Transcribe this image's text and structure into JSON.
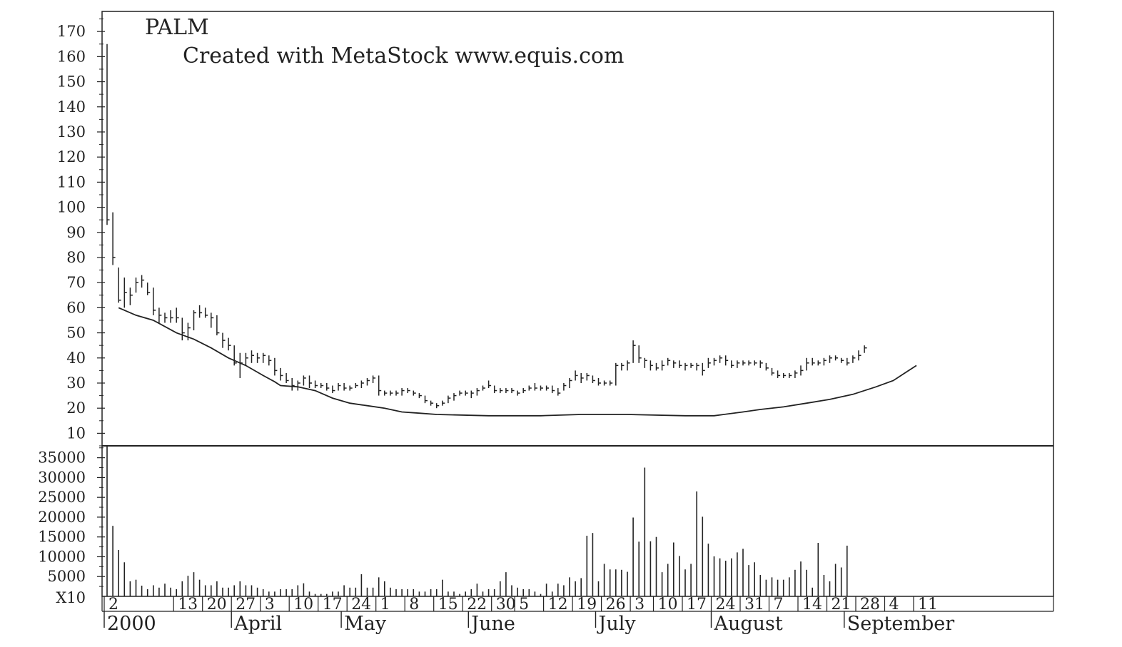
{
  "chart_data": {
    "type": "line",
    "title": "PALM",
    "subtitle": "Created with MetaStock www.equis.com",
    "volume_unit_label": "X10",
    "x_day_ticks": [
      {
        "i": 0,
        "label": "2"
      },
      {
        "i": 12,
        "label": "13"
      },
      {
        "i": 17,
        "label": "20"
      },
      {
        "i": 22,
        "label": "27"
      },
      {
        "i": 27,
        "label": "3"
      },
      {
        "i": 32,
        "label": "10"
      },
      {
        "i": 37,
        "label": "17"
      },
      {
        "i": 42,
        "label": "24"
      },
      {
        "i": 47,
        "label": "1"
      },
      {
        "i": 52,
        "label": "8"
      },
      {
        "i": 57,
        "label": "15"
      },
      {
        "i": 62,
        "label": "22"
      },
      {
        "i": 67,
        "label": "30"
      },
      {
        "i": 71,
        "label": "5"
      },
      {
        "i": 76,
        "label": "12"
      },
      {
        "i": 81,
        "label": "19"
      },
      {
        "i": 86,
        "label": "26"
      },
      {
        "i": 91,
        "label": "3"
      },
      {
        "i": 95,
        "label": "10"
      },
      {
        "i": 100,
        "label": "17"
      },
      {
        "i": 105,
        "label": "24"
      },
      {
        "i": 110,
        "label": "31"
      },
      {
        "i": 115,
        "label": "7"
      },
      {
        "i": 120,
        "label": "14"
      },
      {
        "i": 125,
        "label": "21"
      },
      {
        "i": 130,
        "label": "28"
      },
      {
        "i": 135,
        "label": "4"
      },
      {
        "i": 140,
        "label": "11"
      }
    ],
    "x_month_labels": [
      {
        "i": 0,
        "label": "2000"
      },
      {
        "i": 22,
        "label": "April"
      },
      {
        "i": 41,
        "label": "May"
      },
      {
        "i": 63,
        "label": "June"
      },
      {
        "i": 85,
        "label": "July"
      },
      {
        "i": 105,
        "label": "August"
      },
      {
        "i": 128,
        "label": "September"
      }
    ],
    "price_axis": {
      "min": 5,
      "max": 178,
      "ticks": [
        10,
        20,
        30,
        40,
        50,
        60,
        70,
        80,
        90,
        100,
        110,
        120,
        130,
        140,
        150,
        160,
        170
      ]
    },
    "volume_axis": {
      "min": 0,
      "max": 38000,
      "ticks": [
        5000,
        10000,
        15000,
        20000,
        25000,
        30000,
        35000
      ]
    },
    "price_bars": [
      [
        165,
        93,
        95
      ],
      [
        98,
        77,
        80
      ],
      [
        76,
        62,
        63
      ],
      [
        72,
        60,
        66
      ],
      [
        68,
        61,
        65
      ],
      [
        72,
        66,
        70
      ],
      [
        73,
        68,
        71
      ],
      [
        70,
        65,
        66
      ],
      [
        68,
        57,
        59
      ],
      [
        60,
        54,
        57
      ],
      [
        58,
        54,
        56
      ],
      [
        59,
        54,
        56
      ],
      [
        60,
        54,
        56
      ],
      [
        56,
        47,
        50
      ],
      [
        54,
        47,
        52
      ],
      [
        59,
        51,
        58
      ],
      [
        61,
        56,
        58
      ],
      [
        60,
        56,
        57
      ],
      [
        58,
        52,
        56
      ],
      [
        57,
        49,
        50
      ],
      [
        50,
        44,
        47
      ],
      [
        48,
        43,
        45
      ],
      [
        45,
        37,
        38
      ],
      [
        42,
        32,
        38
      ],
      [
        42,
        37,
        40
      ],
      [
        43,
        38,
        41
      ],
      [
        42,
        38,
        40
      ],
      [
        42,
        38,
        41
      ],
      [
        41,
        37,
        39
      ],
      [
        40,
        33,
        35
      ],
      [
        36,
        31,
        33
      ],
      [
        34,
        30,
        31
      ],
      [
        32,
        27,
        29
      ],
      [
        31,
        27,
        30
      ],
      [
        33,
        29,
        32
      ],
      [
        33,
        28,
        30
      ],
      [
        31,
        28,
        29
      ],
      [
        30,
        28,
        29
      ],
      [
        30,
        27,
        28
      ],
      [
        29,
        26,
        27
      ],
      [
        30,
        27,
        29
      ],
      [
        30,
        27,
        28
      ],
      [
        29,
        27,
        28
      ],
      [
        30,
        28,
        29
      ],
      [
        31,
        28,
        30
      ],
      [
        32,
        29,
        31
      ],
      [
        33,
        30,
        32
      ],
      [
        33,
        25,
        27
      ],
      [
        27,
        25,
        26
      ],
      [
        27,
        25,
        26
      ],
      [
        27,
        25,
        26
      ],
      [
        28,
        25,
        27
      ],
      [
        28,
        26,
        27
      ],
      [
        27,
        25,
        26
      ],
      [
        26,
        24,
        25
      ],
      [
        25,
        22,
        23
      ],
      [
        23,
        21,
        22
      ],
      [
        22,
        20,
        21
      ],
      [
        23,
        21,
        22
      ],
      [
        25,
        22,
        24
      ],
      [
        26,
        23,
        25
      ],
      [
        27,
        25,
        26
      ],
      [
        27,
        25,
        26
      ],
      [
        27,
        24,
        26
      ],
      [
        28,
        25,
        27
      ],
      [
        29,
        27,
        28
      ],
      [
        31,
        28,
        29
      ],
      [
        29,
        26,
        27
      ],
      [
        28,
        26,
        27
      ],
      [
        28,
        26,
        27
      ],
      [
        28,
        26,
        27
      ],
      [
        27,
        25,
        26
      ],
      [
        28,
        26,
        27
      ],
      [
        29,
        27,
        28
      ],
      [
        30,
        27,
        28
      ],
      [
        29,
        27,
        28
      ],
      [
        29,
        27,
        28
      ],
      [
        29,
        26,
        27
      ],
      [
        28,
        25,
        26
      ],
      [
        30,
        27,
        29
      ],
      [
        32,
        28,
        31
      ],
      [
        35,
        31,
        33
      ],
      [
        34,
        30,
        32
      ],
      [
        34,
        31,
        33
      ],
      [
        33,
        30,
        31
      ],
      [
        32,
        29,
        30
      ],
      [
        31,
        29,
        30
      ],
      [
        31,
        29,
        30
      ],
      [
        38,
        29,
        37
      ],
      [
        38,
        35,
        37
      ],
      [
        39,
        35,
        38
      ],
      [
        47,
        38,
        45
      ],
      [
        45,
        38,
        40
      ],
      [
        40,
        36,
        39
      ],
      [
        39,
        35,
        37
      ],
      [
        38,
        35,
        36
      ],
      [
        39,
        35,
        37
      ],
      [
        40,
        37,
        39
      ],
      [
        39,
        36,
        38
      ],
      [
        39,
        36,
        37
      ],
      [
        38,
        35,
        37
      ],
      [
        38,
        36,
        37
      ],
      [
        38,
        35,
        37
      ],
      [
        38,
        33,
        35
      ],
      [
        40,
        36,
        38
      ],
      [
        40,
        37,
        39
      ],
      [
        41,
        38,
        40
      ],
      [
        41,
        37,
        39
      ],
      [
        39,
        36,
        37
      ],
      [
        39,
        36,
        38
      ],
      [
        39,
        37,
        38
      ],
      [
        39,
        37,
        38
      ],
      [
        39,
        37,
        38
      ],
      [
        39,
        36,
        38
      ],
      [
        38,
        35,
        36
      ],
      [
        36,
        33,
        34
      ],
      [
        35,
        32,
        33
      ],
      [
        34,
        32,
        33
      ],
      [
        34,
        32,
        33
      ],
      [
        35,
        32,
        34
      ],
      [
        37,
        33,
        35
      ],
      [
        40,
        35,
        38
      ],
      [
        40,
        37,
        38
      ],
      [
        39,
        37,
        38
      ],
      [
        40,
        37,
        39
      ],
      [
        41,
        38,
        40
      ],
      [
        41,
        39,
        40
      ],
      [
        40,
        38,
        39
      ],
      [
        40,
        37,
        38
      ],
      [
        41,
        38,
        40
      ],
      [
        43,
        39,
        41
      ],
      [
        45,
        42,
        44
      ]
    ],
    "moving_average": [
      [
        2,
        60
      ],
      [
        5,
        57
      ],
      [
        8,
        55
      ],
      [
        12,
        50
      ],
      [
        15,
        47.5
      ],
      [
        18,
        44
      ],
      [
        21,
        40
      ],
      [
        24,
        37
      ],
      [
        27,
        33
      ],
      [
        29,
        30.5
      ],
      [
        30,
        29
      ],
      [
        33,
        28.5
      ],
      [
        36,
        27
      ],
      [
        39,
        24
      ],
      [
        42,
        22
      ],
      [
        45,
        21
      ],
      [
        48,
        20
      ],
      [
        51,
        18.5
      ],
      [
        54,
        18
      ],
      [
        57,
        17.5
      ],
      [
        66,
        17
      ],
      [
        75,
        17
      ],
      [
        82,
        17.5
      ],
      [
        90,
        17.5
      ],
      [
        100,
        17
      ],
      [
        105,
        17
      ],
      [
        110,
        18.5
      ],
      [
        113,
        19.5
      ],
      [
        117,
        20.5
      ],
      [
        121,
        22
      ],
      [
        125,
        23.5
      ],
      [
        129,
        25.5
      ],
      [
        133,
        28.5
      ],
      [
        136,
        31
      ],
      [
        138,
        34
      ],
      [
        140,
        37
      ]
    ],
    "volume": [
      [
        0,
        38000
      ],
      [
        1,
        17800
      ],
      [
        2,
        11700
      ],
      [
        3,
        8600
      ],
      [
        4,
        3800
      ],
      [
        5,
        4200
      ],
      [
        6,
        2700
      ],
      [
        7,
        1800
      ],
      [
        8,
        2800
      ],
      [
        9,
        2200
      ],
      [
        10,
        3200
      ],
      [
        11,
        2200
      ],
      [
        12,
        1800
      ],
      [
        13,
        3800
      ],
      [
        14,
        5200
      ],
      [
        15,
        6100
      ],
      [
        16,
        4200
      ],
      [
        17,
        2800
      ],
      [
        18,
        2800
      ],
      [
        19,
        3800
      ],
      [
        20,
        2200
      ],
      [
        21,
        2200
      ],
      [
        22,
        2800
      ],
      [
        23,
        3800
      ],
      [
        24,
        2800
      ],
      [
        25,
        2800
      ],
      [
        26,
        2200
      ],
      [
        27,
        1800
      ],
      [
        28,
        1200
      ],
      [
        29,
        1200
      ],
      [
        30,
        1800
      ],
      [
        31,
        1800
      ],
      [
        32,
        1800
      ],
      [
        33,
        2800
      ],
      [
        34,
        3300
      ],
      [
        35,
        1200
      ],
      [
        36,
        600
      ],
      [
        37,
        600
      ],
      [
        38,
        600
      ],
      [
        39,
        1200
      ],
      [
        40,
        1200
      ],
      [
        41,
        2800
      ],
      [
        42,
        2200
      ],
      [
        43,
        2200
      ],
      [
        44,
        5600
      ],
      [
        45,
        2200
      ],
      [
        46,
        2200
      ],
      [
        47,
        4800
      ],
      [
        48,
        3800
      ],
      [
        49,
        2200
      ],
      [
        50,
        1800
      ],
      [
        51,
        1800
      ],
      [
        52,
        1800
      ],
      [
        53,
        1800
      ],
      [
        54,
        1200
      ],
      [
        55,
        1200
      ],
      [
        56,
        1800
      ],
      [
        57,
        1800
      ],
      [
        58,
        4200
      ],
      [
        59,
        1200
      ],
      [
        60,
        1200
      ],
      [
        61,
        600
      ],
      [
        62,
        1200
      ],
      [
        63,
        1800
      ],
      [
        64,
        3200
      ],
      [
        65,
        1200
      ],
      [
        66,
        1800
      ],
      [
        67,
        1800
      ],
      [
        68,
        3800
      ],
      [
        69,
        6100
      ],
      [
        70,
        2800
      ],
      [
        71,
        2200
      ],
      [
        72,
        1800
      ],
      [
        73,
        1800
      ],
      [
        74,
        1200
      ],
      [
        75,
        600
      ],
      [
        76,
        3200
      ],
      [
        77,
        1200
      ],
      [
        78,
        3200
      ],
      [
        79,
        2800
      ],
      [
        80,
        4800
      ],
      [
        81,
        3800
      ],
      [
        82,
        4600
      ],
      [
        83,
        15300
      ],
      [
        84,
        16000
      ],
      [
        85,
        3800
      ],
      [
        86,
        8200
      ],
      [
        87,
        6800
      ],
      [
        88,
        6800
      ],
      [
        89,
        6700
      ],
      [
        90,
        6200
      ],
      [
        91,
        19900
      ],
      [
        92,
        13800
      ],
      [
        93,
        32500
      ],
      [
        94,
        13900
      ],
      [
        95,
        15000
      ],
      [
        96,
        6100
      ],
      [
        97,
        8200
      ],
      [
        98,
        13600
      ],
      [
        99,
        10200
      ],
      [
        100,
        6800
      ],
      [
        101,
        8200
      ],
      [
        102,
        26500
      ],
      [
        103,
        20100
      ],
      [
        104,
        13300
      ],
      [
        105,
        10100
      ],
      [
        106,
        9600
      ],
      [
        107,
        9000
      ],
      [
        108,
        9600
      ],
      [
        109,
        11100
      ],
      [
        110,
        12000
      ],
      [
        111,
        7900
      ],
      [
        112,
        8600
      ],
      [
        113,
        5400
      ],
      [
        114,
        4200
      ],
      [
        115,
        4800
      ],
      [
        116,
        4200
      ],
      [
        117,
        4200
      ],
      [
        118,
        4800
      ],
      [
        119,
        6700
      ],
      [
        120,
        8800
      ],
      [
        121,
        6700
      ],
      [
        122,
        2200
      ],
      [
        123,
        13500
      ],
      [
        124,
        5400
      ],
      [
        125,
        3800
      ],
      [
        126,
        8200
      ],
      [
        127,
        7300
      ],
      [
        128,
        12800
      ]
    ]
  }
}
